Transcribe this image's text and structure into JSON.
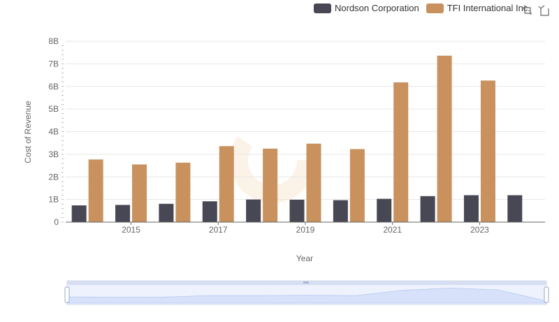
{
  "legend": {
    "items": [
      {
        "name": "Nordson Corporation",
        "color": "#484855"
      },
      {
        "name": "TFI International Inc.",
        "color": "#c8915e"
      }
    ]
  },
  "toolbox": {
    "zoom_icon": "zoom-icon",
    "restore_icon": "restore-icon"
  },
  "chart_data": {
    "type": "bar",
    "categories": [
      "2014",
      "2015",
      "2016",
      "2017",
      "2018",
      "2019",
      "2020",
      "2021",
      "2022",
      "2023",
      "2024"
    ],
    "x_tick_labels": [
      "2015",
      "2017",
      "2019",
      "2021",
      "2023"
    ],
    "series": [
      {
        "name": "Nordson Corporation",
        "color": "#484855",
        "values": [
          0.74,
          0.76,
          0.81,
          0.92,
          1.0,
          0.99,
          0.97,
          1.03,
          1.15,
          1.19,
          1.19
        ]
      },
      {
        "name": "TFI International Inc.",
        "color": "#c8915e",
        "values": [
          2.77,
          2.55,
          2.63,
          3.36,
          3.25,
          3.47,
          3.23,
          6.18,
          7.36,
          6.26,
          null
        ]
      }
    ],
    "xlabel": "Year",
    "ylabel": "Cost of Revenue",
    "ylim": [
      0,
      8
    ],
    "y_ticks": [
      0,
      1,
      2,
      3,
      4,
      5,
      6,
      7,
      8
    ],
    "y_tick_labels": [
      "0",
      "1B",
      "2B",
      "3B",
      "4B",
      "5B",
      "6B",
      "7B",
      "8B"
    ],
    "grid": true,
    "legend_position": "top-right",
    "slider": {
      "start": 0,
      "end": 100
    }
  }
}
